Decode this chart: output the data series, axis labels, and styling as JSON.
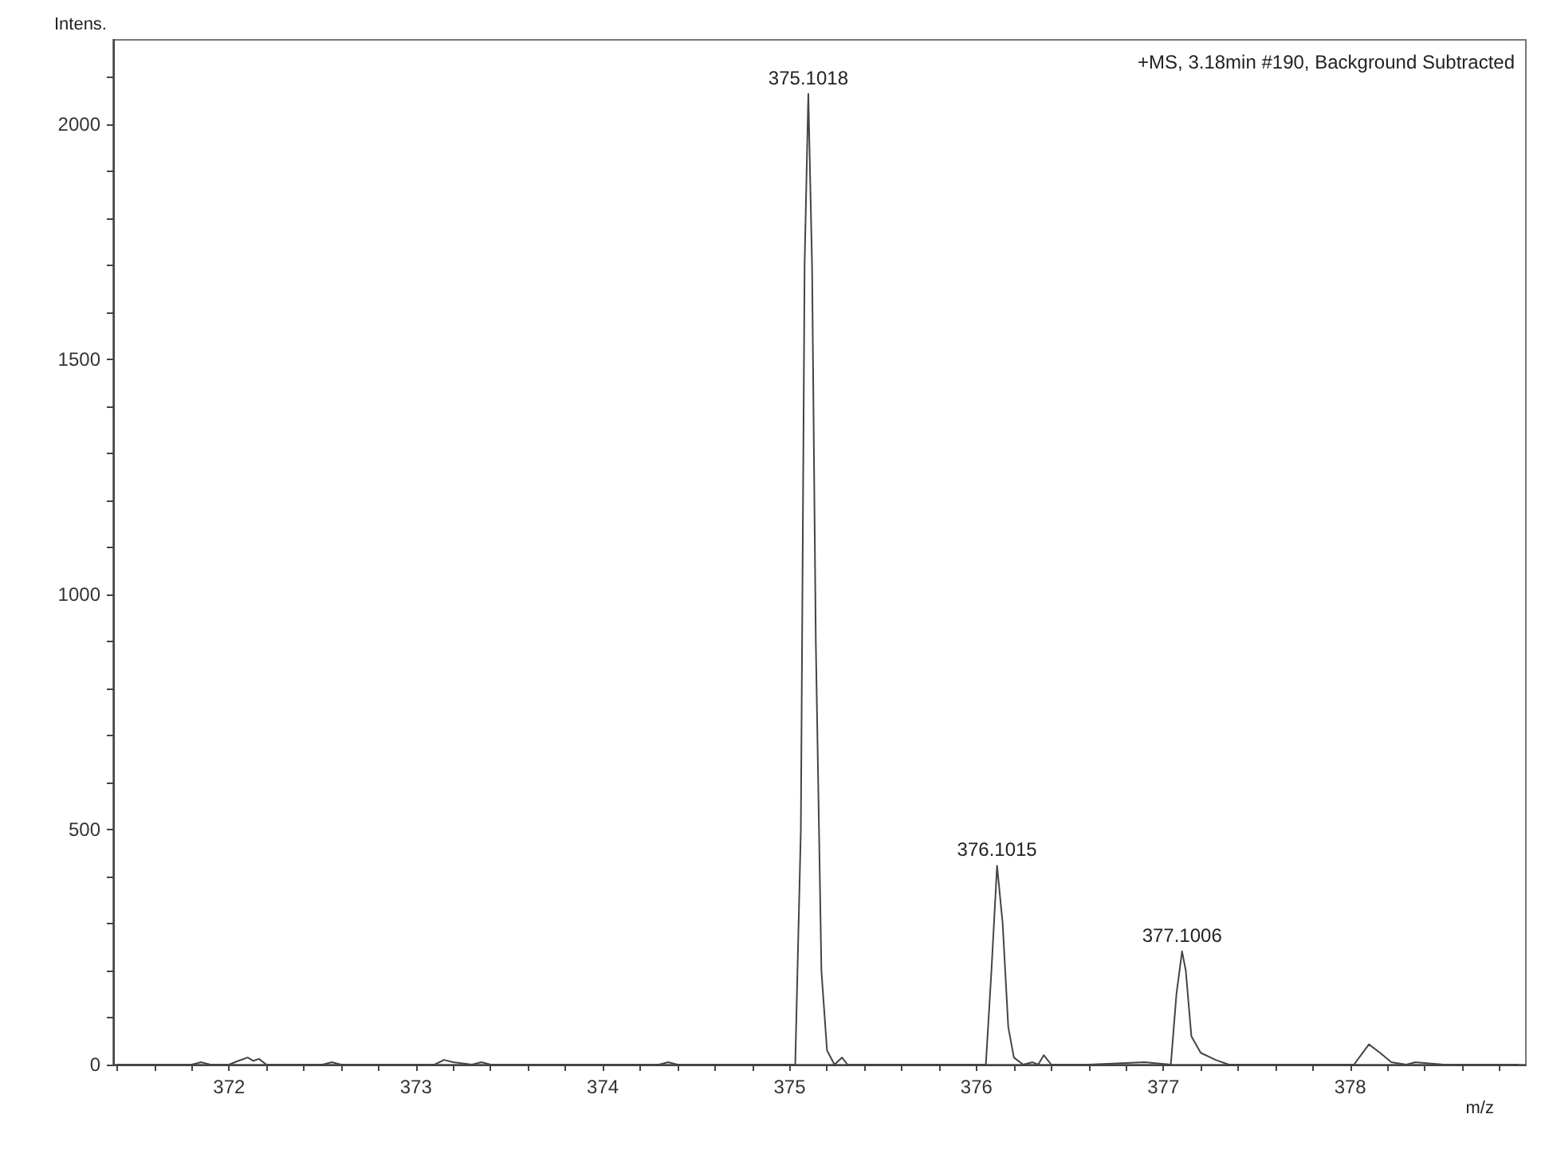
{
  "chart_data": {
    "type": "line",
    "title": "+MS, 3.18min #190, Background Subtracted",
    "xlabel": "m/z",
    "ylabel": "Intens.",
    "x": [
      371.4,
      371.8,
      371.85,
      371.9,
      372.0,
      372.05,
      372.1,
      372.13,
      372.16,
      372.2,
      372.3,
      372.5,
      372.55,
      372.6,
      373.0,
      373.1,
      373.15,
      373.2,
      373.3,
      373.35,
      373.4,
      374.0,
      374.3,
      374.35,
      374.4,
      374.9,
      375.03,
      375.06,
      375.08,
      375.1,
      375.12,
      375.14,
      375.17,
      375.2,
      375.24,
      375.28,
      375.31,
      375.4,
      375.8,
      376.05,
      376.08,
      376.11,
      376.14,
      376.17,
      376.2,
      376.25,
      376.3,
      376.33,
      376.36,
      376.4,
      376.6,
      376.9,
      377.04,
      377.07,
      377.1,
      377.12,
      377.15,
      377.2,
      377.28,
      377.35,
      377.6,
      377.9,
      378.02,
      378.1,
      378.16,
      378.22,
      378.3,
      378.35,
      378.5,
      378.9
    ],
    "values": [
      0,
      0,
      5,
      0,
      0,
      8,
      15,
      8,
      12,
      0,
      0,
      0,
      5,
      0,
      0,
      0,
      10,
      5,
      0,
      5,
      0,
      0,
      0,
      5,
      0,
      0,
      0,
      500,
      1700,
      2065,
      1700,
      900,
      200,
      30,
      0,
      15,
      0,
      0,
      0,
      0,
      200,
      423,
      300,
      80,
      15,
      0,
      5,
      0,
      20,
      0,
      0,
      5,
      0,
      150,
      241,
      200,
      60,
      25,
      10,
      0,
      0,
      0,
      0,
      43,
      25,
      5,
      0,
      5,
      0,
      0
    ],
    "color": "#444444",
    "marker": "none",
    "line_style": "solid",
    "grid": false,
    "xlim": [
      371.38,
      378.94
    ],
    "xticks": [
      {
        "value": 371.4,
        "label": null
      },
      {
        "value": 371.6,
        "label": null
      },
      {
        "value": 371.8,
        "label": null
      },
      372,
      {
        "value": 372.2,
        "label": null
      },
      {
        "value": 372.4,
        "label": null
      },
      {
        "value": 372.6,
        "label": null
      },
      {
        "value": 372.8,
        "label": null
      },
      373,
      {
        "value": 373.2,
        "label": null
      },
      {
        "value": 373.4,
        "label": null
      },
      {
        "value": 373.6,
        "label": null
      },
      {
        "value": 373.8,
        "label": null
      },
      374,
      {
        "value": 374.2,
        "label": null
      },
      {
        "value": 374.4,
        "label": null
      },
      {
        "value": 374.6,
        "label": null
      },
      {
        "value": 374.8,
        "label": null
      },
      375,
      {
        "value": 375.2,
        "label": null
      },
      {
        "value": 375.4,
        "label": null
      },
      {
        "value": 375.6,
        "label": null
      },
      {
        "value": 375.8,
        "label": null
      },
      376,
      {
        "value": 376.2,
        "label": null
      },
      {
        "value": 376.4,
        "label": null
      },
      {
        "value": 376.6,
        "label": null
      },
      {
        "value": 376.8,
        "label": null
      },
      377,
      {
        "value": 377.2,
        "label": null
      },
      {
        "value": 377.4,
        "label": null
      },
      {
        "value": 377.6,
        "label": null
      },
      {
        "value": 377.8,
        "label": null
      },
      378,
      {
        "value": 378.2,
        "label": null
      },
      {
        "value": 378.4,
        "label": null
      },
      {
        "value": 378.6,
        "label": null
      },
      {
        "value": 378.8,
        "label": null
      }
    ],
    "ylim": [
      0,
      2180
    ],
    "yticks": [
      0,
      {
        "value": 100,
        "label": null
      },
      {
        "value": 200,
        "label": null
      },
      {
        "value": 300,
        "label": null
      },
      {
        "value": 400,
        "label": null
      },
      500,
      {
        "value": 600,
        "label": null
      },
      {
        "value": 700,
        "label": null
      },
      {
        "value": 800,
        "label": null
      },
      {
        "value": 900,
        "label": null
      },
      1000,
      {
        "value": 1100,
        "label": null
      },
      {
        "value": 1200,
        "label": null
      },
      {
        "value": 1300,
        "label": null
      },
      {
        "value": 1400,
        "label": null
      },
      1500,
      {
        "value": 1600,
        "label": null
      },
      {
        "value": 1700,
        "label": null
      },
      {
        "value": 1800,
        "label": null
      },
      {
        "value": 1900,
        "label": null
      },
      2000,
      {
        "value": 2100,
        "label": null
      }
    ],
    "annotations": [
      {
        "text": "375.1018",
        "x": 375.1,
        "y": 2065
      },
      {
        "text": "376.1015",
        "x": 376.11,
        "y": 423
      },
      {
        "text": "377.1006",
        "x": 377.1,
        "y": 241
      }
    ]
  }
}
